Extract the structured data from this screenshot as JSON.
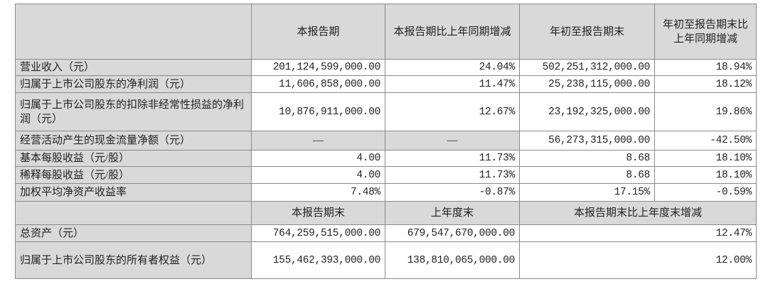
{
  "header": {
    "blank": "",
    "col1": "本报告期",
    "col2": "本报告期比上年同期增减",
    "col3": "年初至报告期末",
    "col4": "年初至报告期末比上年同期增减"
  },
  "rows": [
    {
      "label": "营业收入（元）",
      "c1": "201,124,599,000.00",
      "c2": "24.04%",
      "c3": "502,251,312,000.00",
      "c4": "18.94%"
    },
    {
      "label": "归属于上市公司股东的净利润（元）",
      "c1": "11,606,858,000.00",
      "c2": "11.47%",
      "c3": "25,238,115,000.00",
      "c4": "18.12%"
    },
    {
      "label": "归属于上市公司股东的扣除非经常性损益的净利润（元）",
      "c1": "10,876,911,000.00",
      "c2": "12.67%",
      "c3": "23,192,325,000.00",
      "c4": "19.86%"
    },
    {
      "label": "经营活动产生的现金流量净额（元）",
      "c1": "—",
      "c2": "—",
      "c3": "56,273,315,000.00",
      "c4": "-42.50%"
    },
    {
      "label": "基本每股收益（元/股）",
      "c1": "4.00",
      "c2": "11.73%",
      "c3": "8.68",
      "c4": "18.10%"
    },
    {
      "label": "稀释每股收益（元/股）",
      "c1": "4.00",
      "c2": "11.73%",
      "c3": "8.68",
      "c4": "18.10%"
    },
    {
      "label": "加权平均净资产收益率",
      "c1": "7.48%",
      "c2": "-0.87%",
      "c3": "17.15%",
      "c4": "-0.59%"
    }
  ],
  "header2": {
    "col1": "本报告期末",
    "col2": "上年度末",
    "col3": "本报告期末比上年度末增减"
  },
  "rows2": [
    {
      "label": "总资产（元）",
      "c1": "764,259,515,000.00",
      "c2": "679,547,670,000.00",
      "c3": "12.47%"
    },
    {
      "label": "归属于上市公司股东的所有者权益（元）",
      "c1": "155,462,393,000.00",
      "c2": "138,810,065,000.00",
      "c3": "12.00%"
    }
  ]
}
